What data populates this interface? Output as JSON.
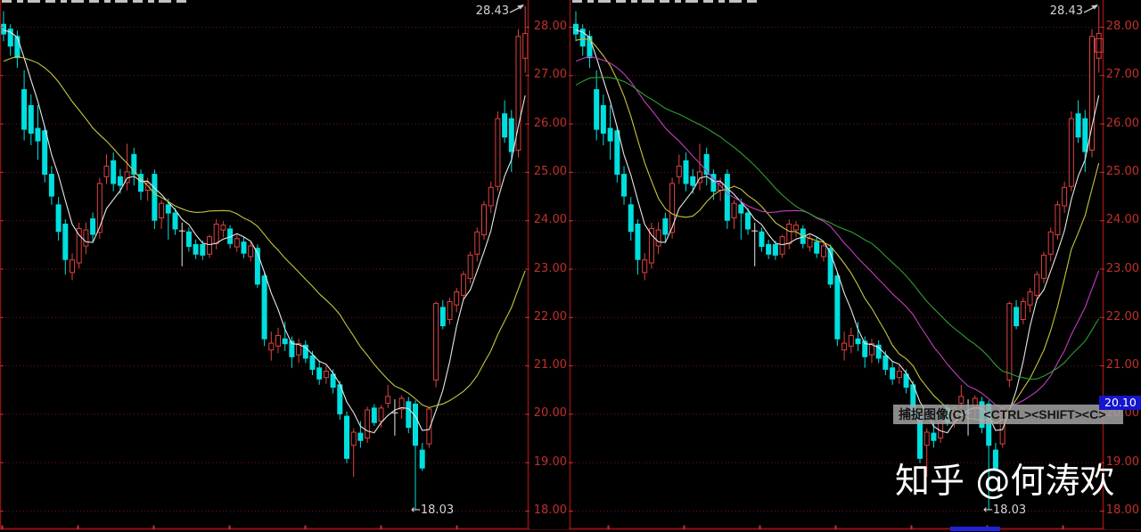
{
  "app": {
    "description": "stock candlestick charting software, two linked chart panels"
  },
  "watermark": {
    "text": "知乎 @何涛欢"
  },
  "tooltip": {
    "action": "捕捉图像(C)",
    "hotkey": "<CTRL><SHIFT><C>"
  },
  "price_tag": {
    "value": "20.10",
    "bg": "#1515cd",
    "fg": "#ffffff"
  },
  "annotations": {
    "high": "28.43",
    "low": "←18.03"
  },
  "y_axis": {
    "labels": [
      "28.00",
      "27.00",
      "26.00",
      "25.00",
      "24.00",
      "23.00",
      "22.00",
      "21.00",
      "20.00",
      "19.00",
      "18.00"
    ],
    "color": "#c0302c"
  },
  "chart_data": {
    "type": "candlestick",
    "ylim": [
      18.0,
      28.6
    ],
    "price_high": 28.43,
    "price_low": 18.03,
    "marked_price": 20.1,
    "up_color": "#dd4341",
    "down_color": "#00dfdf",
    "doji_color": "#e8e8e8",
    "grid_color": "#6e1818",
    "border_color": "#8a1111",
    "tick_color": "#c03333",
    "panels": [
      {
        "name": "left-chart",
        "ma": [
          {
            "period": 5,
            "color": "#e8e8e8"
          },
          {
            "period": 20,
            "color": "#c6c63e"
          }
        ]
      },
      {
        "name": "right-chart",
        "ma": [
          {
            "period": 5,
            "color": "#e8e8e8"
          },
          {
            "period": 10,
            "color": "#c6c63e"
          },
          {
            "period": 20,
            "color": "#c23ec2"
          },
          {
            "period": 30,
            "color": "#2f9e2f"
          }
        ]
      }
    ],
    "ma_seed_closes": [
      25.2,
      25.4,
      25.5,
      25.7,
      25.8,
      25.9,
      26.0,
      26.1,
      26.2,
      26.3,
      26.4,
      26.5,
      26.6,
      26.7,
      26.8,
      26.9,
      27.0,
      27.1,
      27.2,
      27.3,
      27.35,
      27.4,
      27.5,
      27.6,
      27.7,
      27.8,
      27.9,
      28.0,
      28.1
    ],
    "candles": [
      [
        28.05,
        28.32,
        27.7,
        27.85
      ],
      [
        27.95,
        28.05,
        27.4,
        27.6
      ],
      [
        27.8,
        27.92,
        27.15,
        27.36
      ],
      [
        26.7,
        27.1,
        25.65,
        25.88
      ],
      [
        26.37,
        26.6,
        25.55,
        25.8
      ],
      [
        25.9,
        26.38,
        25.25,
        25.64
      ],
      [
        25.85,
        25.95,
        24.78,
        24.95
      ],
      [
        24.95,
        25.12,
        24.32,
        24.5
      ],
      [
        24.32,
        24.48,
        23.58,
        23.77
      ],
      [
        23.92,
        24.02,
        22.88,
        23.19
      ],
      [
        22.92,
        23.32,
        22.76,
        23.18
      ],
      [
        23.12,
        23.95,
        23.0,
        23.83
      ],
      [
        23.47,
        23.96,
        23.3,
        23.8
      ],
      [
        24.03,
        24.16,
        23.55,
        23.71
      ],
      [
        23.75,
        24.88,
        23.62,
        24.76
      ],
      [
        24.9,
        25.36,
        24.75,
        25.12
      ],
      [
        25.23,
        25.4,
        24.6,
        24.76
      ],
      [
        24.9,
        25.06,
        24.55,
        24.72
      ],
      [
        24.78,
        25.58,
        24.62,
        25.0
      ],
      [
        25.36,
        25.5,
        24.72,
        24.95
      ],
      [
        24.95,
        25.05,
        24.42,
        24.6
      ],
      [
        24.62,
        24.88,
        24.4,
        24.77
      ],
      [
        24.95,
        25.05,
        23.82,
        24.0
      ],
      [
        24.05,
        24.42,
        23.82,
        24.35
      ],
      [
        24.32,
        24.45,
        23.6,
        24.15
      ],
      [
        24.15,
        24.25,
        23.7,
        23.82
      ],
      [
        23.78,
        23.95,
        23.05,
        23.78
      ],
      [
        23.76,
        23.85,
        23.35,
        23.46
      ],
      [
        23.5,
        23.6,
        23.2,
        23.3
      ],
      [
        23.5,
        23.58,
        23.18,
        23.28
      ],
      [
        23.3,
        23.7,
        23.22,
        23.66
      ],
      [
        23.52,
        24.02,
        23.4,
        23.92
      ],
      [
        23.8,
        23.98,
        23.65,
        23.9
      ],
      [
        23.82,
        23.9,
        23.42,
        23.52
      ],
      [
        23.45,
        23.7,
        23.35,
        23.62
      ],
      [
        23.55,
        23.65,
        23.22,
        23.32
      ],
      [
        23.25,
        23.55,
        23.15,
        23.47
      ],
      [
        23.42,
        23.5,
        22.6,
        22.68
      ],
      [
        22.85,
        22.92,
        21.4,
        21.55
      ],
      [
        21.32,
        21.7,
        21.1,
        21.46
      ],
      [
        21.4,
        21.78,
        21.25,
        21.62
      ],
      [
        21.55,
        21.9,
        21.3,
        21.45
      ],
      [
        21.5,
        21.6,
        20.95,
        21.18
      ],
      [
        21.22,
        21.55,
        21.05,
        21.45
      ],
      [
        21.42,
        21.52,
        21.05,
        21.15
      ],
      [
        21.2,
        21.3,
        20.8,
        20.92
      ],
      [
        20.95,
        21.1,
        20.6,
        20.72
      ],
      [
        20.75,
        21.0,
        20.62,
        20.88
      ],
      [
        20.82,
        20.92,
        20.42,
        20.55
      ],
      [
        20.6,
        20.68,
        19.88,
        20.0
      ],
      [
        19.95,
        20.05,
        18.98,
        19.08
      ],
      [
        19.35,
        19.7,
        18.7,
        19.62
      ],
      [
        19.6,
        19.85,
        19.3,
        19.45
      ],
      [
        19.5,
        20.15,
        19.4,
        20.08
      ],
      [
        20.12,
        20.2,
        19.75,
        19.82
      ],
      [
        19.85,
        20.18,
        19.72,
        20.12
      ],
      [
        20.22,
        20.6,
        20.12,
        20.36
      ],
      [
        20.02,
        20.3,
        19.55,
        20.02
      ],
      [
        20.1,
        20.38,
        19.9,
        20.32
      ],
      [
        20.25,
        20.35,
        19.6,
        19.72
      ],
      [
        20.2,
        20.28,
        18.03,
        19.35
      ],
      [
        19.25,
        19.4,
        18.82,
        18.88
      ],
      [
        19.38,
        20.14,
        19.3,
        20.1
      ],
      [
        20.7,
        22.32,
        20.55,
        22.28
      ],
      [
        22.2,
        22.35,
        21.75,
        21.82
      ],
      [
        21.95,
        22.4,
        21.85,
        22.32
      ],
      [
        22.25,
        22.6,
        22.1,
        22.52
      ],
      [
        22.45,
        22.95,
        22.35,
        22.88
      ],
      [
        22.8,
        23.35,
        22.7,
        23.28
      ],
      [
        23.3,
        23.85,
        23.15,
        23.76
      ],
      [
        23.7,
        24.4,
        23.6,
        24.32
      ],
      [
        24.3,
        24.8,
        24.15,
        24.68
      ],
      [
        24.7,
        26.25,
        24.6,
        26.1
      ],
      [
        26.2,
        26.48,
        25.6,
        25.72
      ],
      [
        26.1,
        26.28,
        25.0,
        25.42
      ],
      [
        25.45,
        27.95,
        25.3,
        27.8
      ],
      [
        27.35,
        28.43,
        27.05,
        27.86
      ]
    ]
  }
}
